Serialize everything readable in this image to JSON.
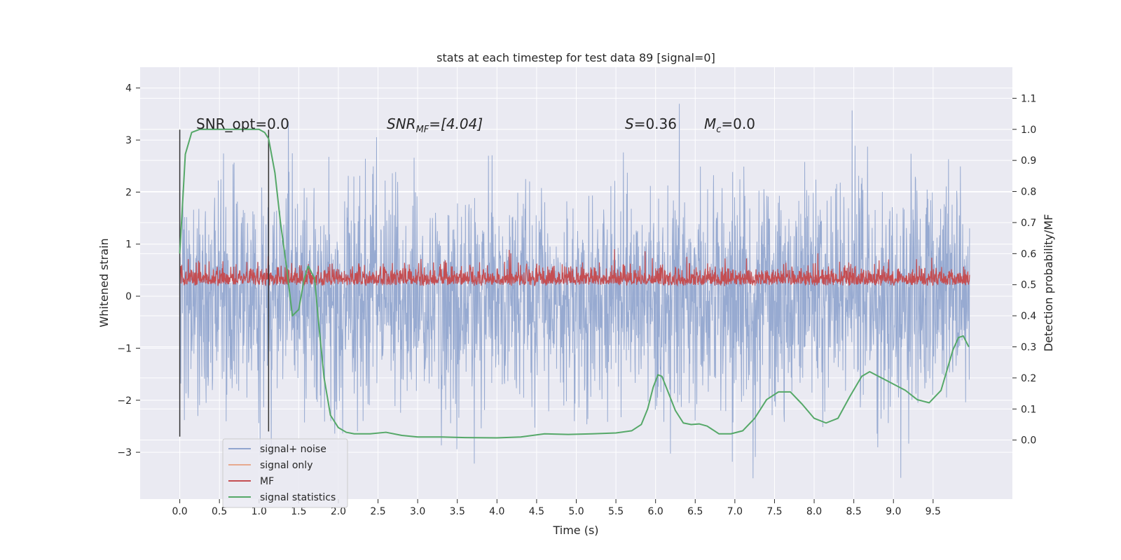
{
  "chart_data": {
    "type": "line",
    "title": "stats at each timestep for test data 89 [signal=0]",
    "xlabel": "Time (s)",
    "ylabel": "Whitened strain",
    "y2label": "Detection probability/MF",
    "xlim": [
      -0.5,
      10.5
    ],
    "ylim": [
      -3.9,
      4.4
    ],
    "y2lim": [
      -0.19,
      1.2
    ],
    "x_ticks": [
      "0.0",
      "0.5",
      "1.0",
      "1.5",
      "2.0",
      "2.5",
      "3.0",
      "3.5",
      "4.0",
      "4.5",
      "5.0",
      "5.5",
      "6.0",
      "6.5",
      "7.0",
      "7.5",
      "8.0",
      "8.5",
      "9.0",
      "9.5"
    ],
    "y_ticks": [
      "4",
      "3",
      "2",
      "1",
      "0",
      "−1",
      "−2",
      "−3"
    ],
    "y2_ticks": [
      "1.1",
      "1.0",
      "0.9",
      "0.8",
      "0.7",
      "0.6",
      "0.5",
      "0.4",
      "0.3",
      "0.2",
      "0.1",
      "0.0"
    ],
    "grid": true,
    "legend_position": "lower-left",
    "series": [
      {
        "name": "signal+ noise",
        "color": "#92a6cf",
        "axis": "left",
        "envelope": {
          "x_range": [
            0.0,
            9.96
          ],
          "typical_low": -1.6,
          "typical_high": 1.5,
          "peak_high": 4.04,
          "peak_low": -3.5
        }
      },
      {
        "name": "signal only",
        "color": "#e7a98e",
        "axis": "left",
        "values_note": ""
      },
      {
        "name": "MF",
        "color": "#c44e52",
        "axis": "left",
        "envelope": {
          "x_range": [
            0.0,
            9.96
          ],
          "typical_low": 0.05,
          "typical_high": 0.55,
          "peak_high": 1.0
        }
      },
      {
        "name": "signal statistics",
        "color": "#55a868",
        "axis": "right",
        "x": [
          0.0,
          0.07,
          0.15,
          0.25,
          0.4,
          0.6,
          0.8,
          1.0,
          1.07,
          1.12,
          1.2,
          1.27,
          1.35,
          1.42,
          1.5,
          1.57,
          1.62,
          1.7,
          1.75,
          1.82,
          1.9,
          2.0,
          2.1,
          2.2,
          2.4,
          2.6,
          2.8,
          3.0,
          3.3,
          3.6,
          4.0,
          4.3,
          4.6,
          4.9,
          5.2,
          5.5,
          5.7,
          5.82,
          5.9,
          5.97,
          6.03,
          6.08,
          6.15,
          6.25,
          6.35,
          6.45,
          6.55,
          6.65,
          6.8,
          6.95,
          7.1,
          7.25,
          7.4,
          7.55,
          7.7,
          7.85,
          8.0,
          8.15,
          8.3,
          8.45,
          8.6,
          8.7,
          8.85,
          9.0,
          9.15,
          9.3,
          9.45,
          9.6,
          9.75,
          9.82,
          9.88,
          9.95
        ],
        "values": [
          0.6,
          0.92,
          0.99,
          1.0,
          1.0,
          1.0,
          1.0,
          1.0,
          0.99,
          0.97,
          0.86,
          0.7,
          0.55,
          0.4,
          0.42,
          0.52,
          0.56,
          0.52,
          0.38,
          0.2,
          0.08,
          0.04,
          0.025,
          0.02,
          0.02,
          0.025,
          0.015,
          0.01,
          0.01,
          0.008,
          0.007,
          0.01,
          0.02,
          0.018,
          0.02,
          0.023,
          0.03,
          0.05,
          0.1,
          0.17,
          0.21,
          0.205,
          0.16,
          0.095,
          0.055,
          0.05,
          0.052,
          0.045,
          0.02,
          0.02,
          0.03,
          0.07,
          0.13,
          0.155,
          0.155,
          0.115,
          0.07,
          0.055,
          0.07,
          0.14,
          0.205,
          0.22,
          0.2,
          0.18,
          0.16,
          0.13,
          0.12,
          0.16,
          0.29,
          0.33,
          0.335,
          0.3
        ]
      }
    ],
    "vertical_markers": [
      {
        "x": 0.0,
        "y_range": [
          -2.7,
          3.2
        ],
        "color": "#333333"
      },
      {
        "x": 1.12,
        "y_range": [
          -2.6,
          3.2
        ],
        "color": "#333333"
      }
    ],
    "annotations": [
      {
        "text": "SNR_opt=0.0",
        "x": 0.2,
        "y": 3.15,
        "italic": false
      },
      {
        "text": "SNRMF=[4.04]",
        "main": "SNR",
        "sub": "MF",
        "rest": "=[4.04]",
        "x": 2.6,
        "y": 3.15,
        "italic": true
      },
      {
        "text": "S=0.36",
        "main": "S",
        "rest": "=0.36",
        "x": 5.6,
        "y": 3.15,
        "italic": true
      },
      {
        "text": "Mc=0.0",
        "main": "M",
        "sub": "c",
        "rest": "=0.0",
        "x": 6.6,
        "y": 3.15,
        "italic": true
      }
    ],
    "colors": {
      "plot_background": "#eaeaf2",
      "grid": "#ffffff",
      "text": "#262626"
    }
  }
}
